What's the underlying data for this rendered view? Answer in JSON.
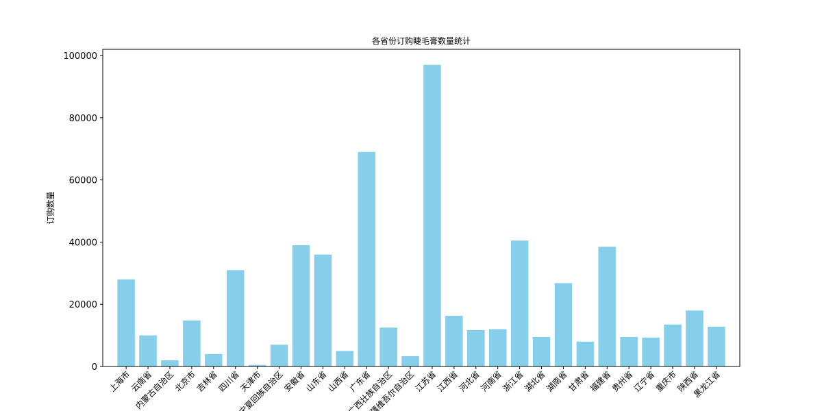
{
  "chart_data": {
    "type": "bar",
    "title": "各省份订购睫毛膏数量统计",
    "xlabel": "",
    "ylabel": "订购数量",
    "ylim": [
      0,
      102000
    ],
    "yticks": [
      0,
      20000,
      40000,
      60000,
      80000,
      100000
    ],
    "grid": false,
    "bar_color": "#87CEEB",
    "categories": [
      "上海市",
      "云南省",
      "内蒙古自治区",
      "北京市",
      "吉林省",
      "四川省",
      "天津市",
      "宁夏回族自治区",
      "安徽省",
      "山东省",
      "山西省",
      "广东省",
      "广西壮族自治区",
      "新疆维吾尔自治区",
      "江苏省",
      "江西省",
      "河北省",
      "河南省",
      "浙江省",
      "湖北省",
      "湖南省",
      "甘肃省",
      "福建省",
      "贵州省",
      "辽宁省",
      "重庆市",
      "陕西省",
      "黑龙江省"
    ],
    "values": [
      28000,
      10000,
      2000,
      14800,
      4000,
      31000,
      500,
      7000,
      39000,
      36000,
      5000,
      69000,
      12500,
      3300,
      97000,
      16300,
      11700,
      12000,
      40500,
      9500,
      26800,
      8000,
      38500,
      9500,
      9300,
      13500,
      18000,
      12800
    ]
  }
}
